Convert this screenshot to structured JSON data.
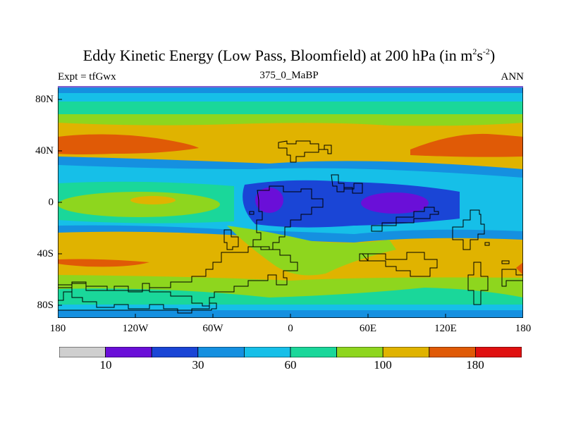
{
  "title": {
    "main": "Eddy Kinetic Energy (Low Pass, Bloomfield) at 200 hPa (in m",
    "sup1": "2",
    "mid": "s",
    "sup2": "-2",
    "end": ")"
  },
  "subtitle": {
    "left": "Expt = tfGwx",
    "center": "375_0_MaBP",
    "right": "ANN"
  },
  "map": {
    "lat_labels": [
      "80N",
      "40N",
      "0",
      "40S",
      "80S"
    ],
    "lon_labels": [
      "180",
      "120W",
      "60W",
      "0",
      "60E",
      "120E",
      "180"
    ],
    "lat_range": [
      -90,
      90
    ],
    "lon_range": [
      -180,
      180
    ]
  },
  "colorbar": {
    "colors": [
      "#cfcfcf",
      "#6a0fd8",
      "#1a45d6",
      "#1590e0",
      "#16bfe8",
      "#1ad79a",
      "#8ed61e",
      "#e0b300",
      "#e05a06",
      "#e01010"
    ],
    "labels": [
      "10",
      "30",
      "60",
      "100",
      "180"
    ]
  }
}
